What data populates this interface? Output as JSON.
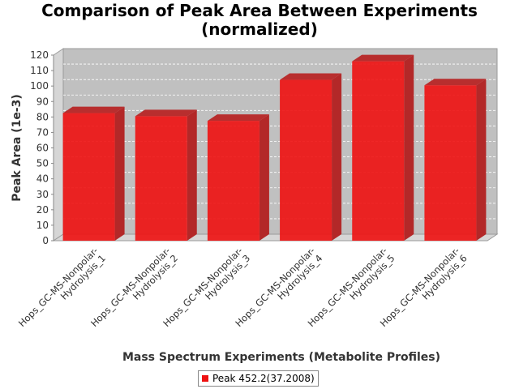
{
  "chart_data": {
    "type": "bar",
    "title_lines": [
      "Comparison of Peak Area Between Experiments",
      "(normalized)"
    ],
    "xlabel": "Mass Spectrum Experiments (Metabolite Profiles)",
    "ylabel": "Peak Area (1e-3)",
    "ylim": [
      0,
      120
    ],
    "yticks": [
      0,
      10,
      20,
      30,
      40,
      50,
      60,
      70,
      80,
      90,
      100,
      110,
      120
    ],
    "grid": true,
    "legend_position": "bottom",
    "categories": [
      [
        "Hops_GC-MS-Nonpolar-",
        "Hydrolysis_1"
      ],
      [
        "Hops_GC-MS-Nonpolar-",
        "Hydrolysis_2"
      ],
      [
        "Hops_GC-MS-Nonpolar-",
        "Hydrolysis_3"
      ],
      [
        "Hops_GC-MS-Nonpolar-",
        "Hydrolysis_4"
      ],
      [
        "Hops_GC-MS-Nonpolar-",
        "Hydrolysis_5"
      ],
      [
        "Hops_GC-MS-Nonpolar-",
        "Hydrolysis_6"
      ]
    ],
    "series": [
      {
        "name": "Peak 452.2(37.2008)",
        "color": "#ee1111",
        "values": [
          82.5,
          80.5,
          77.5,
          104,
          116,
          100.5
        ]
      }
    ]
  }
}
